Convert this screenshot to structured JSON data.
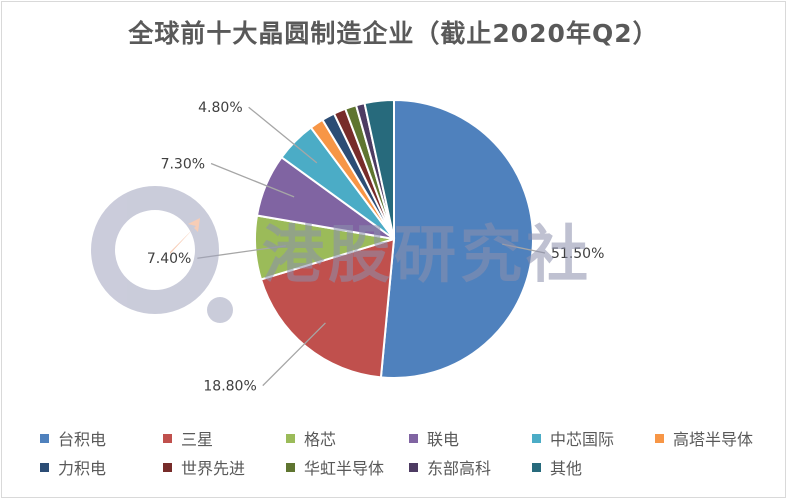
{
  "chart_data": {
    "type": "pie",
    "title": "全球前十大晶圆制造企业（截止2020年Q2）",
    "categories": [
      "台积电",
      "三星",
      "格芯",
      "联电",
      "中芯国际",
      "高塔半导体",
      "力积电",
      "世界先进",
      "华虹半导体",
      "东部高科",
      "其他"
    ],
    "values": [
      51.5,
      18.8,
      7.4,
      7.3,
      4.8,
      1.6,
      1.5,
      1.4,
      1.3,
      1.0,
      3.4
    ],
    "colors": [
      "#4f81bd",
      "#c0504d",
      "#9bbb59",
      "#8064a2",
      "#4bacc6",
      "#f79646",
      "#2c4d75",
      "#772c2a",
      "#5f7530",
      "#4d3b62",
      "#276a7c"
    ],
    "data_labels": [
      "51.50%",
      "18.80%",
      "7.40%",
      "7.30%",
      "4.80%",
      "",
      "",
      "",
      "",
      "",
      ""
    ],
    "legend_position": "bottom"
  },
  "watermark": {
    "text": "港股研究社"
  }
}
